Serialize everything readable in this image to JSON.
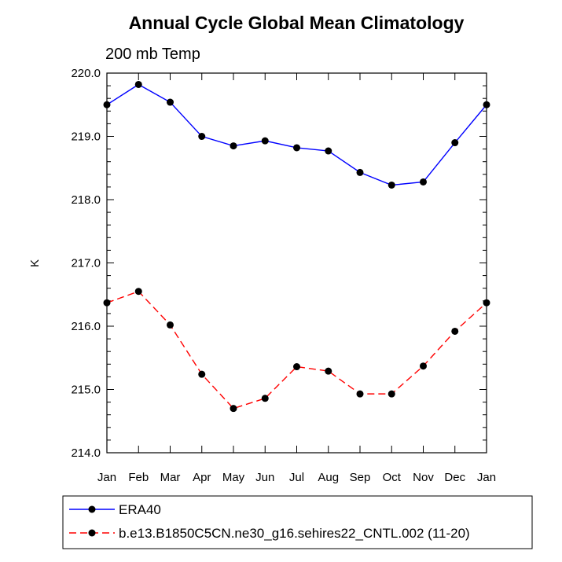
{
  "chart_data": {
    "type": "line",
    "title": "Annual Cycle Global Mean Climatology",
    "subtitle": "200 mb Temp",
    "xlabel": "",
    "ylabel": "K",
    "ylim": [
      214.0,
      220.0
    ],
    "yticks": [
      "214.0",
      "215.0",
      "216.0",
      "217.0",
      "218.0",
      "219.0",
      "220.0"
    ],
    "categories": [
      "Jan",
      "Feb",
      "Mar",
      "Apr",
      "May",
      "Jun",
      "Jul",
      "Aug",
      "Sep",
      "Oct",
      "Nov",
      "Dec",
      "Jan"
    ],
    "series": [
      {
        "name": "ERA40",
        "color": "#0000ff",
        "dash": "solid",
        "values": [
          219.5,
          219.82,
          219.54,
          219.0,
          218.85,
          218.93,
          218.82,
          218.77,
          218.43,
          218.23,
          218.28,
          218.9,
          219.5
        ]
      },
      {
        "name": "b.e13.B1850C5CN.ne30_g16.sehires22_CNTL.002 (11-20)",
        "color": "#ff0000",
        "dash": "dashed",
        "values": [
          216.37,
          216.55,
          216.02,
          215.24,
          214.7,
          214.86,
          215.36,
          215.29,
          214.93,
          214.93,
          215.37,
          215.92,
          216.37
        ]
      }
    ]
  }
}
